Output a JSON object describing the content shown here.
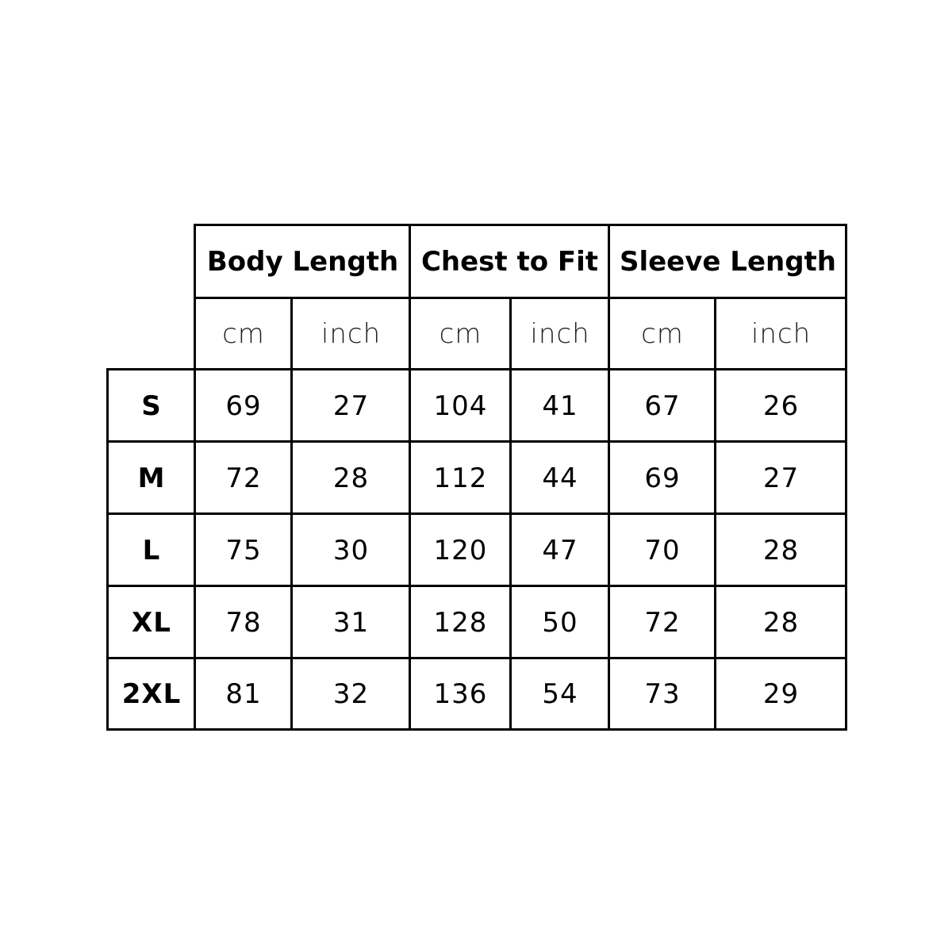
{
  "headers": [
    "Body Length",
    "Chest to Fit",
    "Sleeve Length"
  ],
  "units": [
    "cm",
    "inch",
    "cm",
    "inch",
    "cm",
    "inch"
  ],
  "rows": [
    {
      "size": "S",
      "values": [
        "69",
        "27",
        "104",
        "41",
        "67",
        "26"
      ]
    },
    {
      "size": "M",
      "values": [
        "72",
        "28",
        "112",
        "44",
        "69",
        "27"
      ]
    },
    {
      "size": "L",
      "values": [
        "75",
        "30",
        "120",
        "47",
        "70",
        "28"
      ]
    },
    {
      "size": "XL",
      "values": [
        "78",
        "31",
        "128",
        "50",
        "72",
        "28"
      ]
    },
    {
      "size": "2XL",
      "values": [
        "81",
        "32",
        "136",
        "54",
        "73",
        "29"
      ]
    }
  ]
}
